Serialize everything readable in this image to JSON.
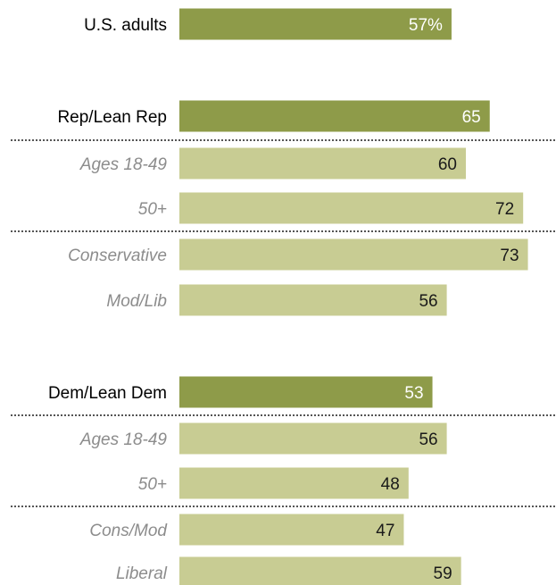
{
  "colors": {
    "dark_bar": "#8e9b49",
    "light_bar": "#c8cc93",
    "sub_label": "#8c8c8c",
    "divider": "#555555"
  },
  "chart_data": {
    "type": "bar",
    "orientation": "horizontal",
    "xlim": [
      0,
      100
    ],
    "categories": [
      "U.S. adults",
      "Rep/Lean Rep",
      "Ages 18-49",
      "50+",
      "Conservative",
      "Mod/Lib",
      "Dem/Lean Dem",
      "Ages 18-49",
      "50+",
      "Cons/Mod",
      "Liberal"
    ],
    "values": [
      57,
      65,
      60,
      72,
      73,
      56,
      53,
      56,
      48,
      47,
      59
    ],
    "value_labels": [
      "57%",
      "65",
      "60",
      "72",
      "73",
      "56",
      "53",
      "56",
      "48",
      "47",
      "59"
    ],
    "bar_styles": [
      "dark",
      "dark",
      "light",
      "light",
      "light",
      "light",
      "dark",
      "light",
      "light",
      "light",
      "light"
    ],
    "label_styles": [
      "main",
      "main",
      "sub",
      "sub",
      "sub",
      "sub",
      "main",
      "sub",
      "sub",
      "sub",
      "sub"
    ],
    "dividers_after": [
      1,
      3,
      6,
      8
    ],
    "grid": false,
    "legend": "none"
  }
}
